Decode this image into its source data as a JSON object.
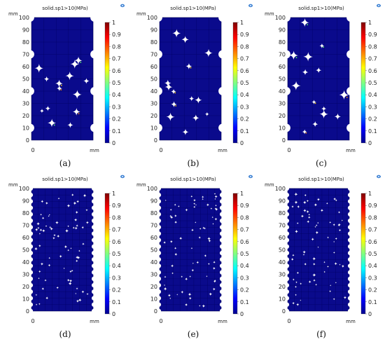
{
  "figure": {
    "panels": [
      {
        "id": "a",
        "title": "solid.sp1>10(MPa)",
        "caption": "(a)",
        "pattern": "coarse-a"
      },
      {
        "id": "b",
        "title": "solid.sp1>10(MPa)",
        "caption": "(b)",
        "pattern": "coarse-b"
      },
      {
        "id": "c",
        "title": "solid.sp1>10(MPa)",
        "caption": "(c)",
        "pattern": "coarse-c"
      },
      {
        "id": "d",
        "title": "solid.sp1>10(MPa)",
        "caption": "(d)",
        "pattern": "fine"
      },
      {
        "id": "e",
        "title": "solid.sp1>10(MPa)",
        "caption": "(e)",
        "pattern": "fine"
      },
      {
        "id": "f",
        "title": "solid.sp1>10(MPa)",
        "caption": "(f)",
        "pattern": "fine"
      }
    ],
    "y_axis": {
      "unit": "mm",
      "ticks": [
        "0",
        "10",
        "20",
        "30",
        "40",
        "50",
        "60",
        "70",
        "80",
        "90",
        "100"
      ]
    },
    "x_axis": {
      "start_label": "0",
      "unit": "mm"
    },
    "colorbar": {
      "ticks": [
        "0",
        "0.1",
        "0.2",
        "0.3",
        "0.4",
        "0.5",
        "0.6",
        "0.7",
        "0.8",
        "0.9",
        "1"
      ],
      "colors": [
        "#00008f",
        "#0000ff",
        "#0080ff",
        "#00ffff",
        "#80ff80",
        "#ffff00",
        "#ff8000",
        "#ff0000",
        "#800000"
      ]
    },
    "colors": {
      "domain_fill": "#0a0a8c",
      "domain_edge": "#000050",
      "background": "#ffffff"
    },
    "corner_icon": "comsol-logo-icon"
  }
}
